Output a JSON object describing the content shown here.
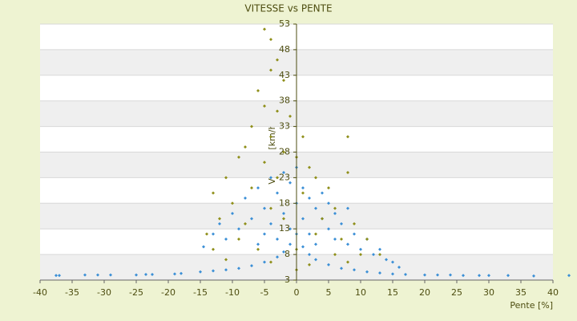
{
  "chart_data": {
    "type": "scatter",
    "title": "VITESSE vs PENTE",
    "x_label": "Pente [%]",
    "y_label": "Vitesse [km/h]",
    "xlim": [
      -40,
      40
    ],
    "xticks": [
      -40,
      -35,
      -30,
      -25,
      -20,
      -15,
      -10,
      -5,
      0,
      5,
      10,
      15,
      20,
      25,
      30,
      35,
      40
    ],
    "ylim": [
      3,
      53
    ],
    "yticks": [
      3,
      8,
      13,
      18,
      23,
      28,
      33,
      38,
      43,
      48,
      53
    ],
    "grid": true,
    "series": [
      {
        "color": "#3b8fd6",
        "x": [
          -37.5,
          -37,
          -33,
          -31,
          -29,
          -25,
          -23.5,
          -22.5,
          -19,
          -18,
          -15,
          -13,
          -11,
          -9,
          -7,
          -5,
          -3,
          -2,
          -1,
          1,
          2,
          3,
          5,
          7,
          9,
          11,
          13,
          15,
          17,
          20,
          22,
          24,
          26,
          28.5,
          30,
          33,
          37,
          42.5,
          -14.5,
          -13,
          -12,
          -11,
          -10,
          -9,
          -8,
          -7,
          -6,
          -6,
          -5,
          -5,
          -4,
          -4,
          -3,
          -3,
          -2,
          -2,
          -1,
          -1,
          0,
          0,
          0,
          1,
          1,
          2,
          2,
          3,
          3,
          4,
          4,
          5,
          5,
          6,
          6,
          7,
          8,
          8,
          9,
          10,
          11,
          12,
          13,
          14,
          15,
          16
        ],
        "y": [
          3.9,
          3.9,
          4,
          4,
          4,
          4,
          4.1,
          4.1,
          4.2,
          4.3,
          4.6,
          4.8,
          5,
          5.3,
          5.8,
          6.5,
          7.5,
          8.5,
          10,
          9.5,
          8,
          7,
          6,
          5.3,
          5,
          4.6,
          4.4,
          4.2,
          4.1,
          4,
          4,
          4,
          3.9,
          3.9,
          3.9,
          3.9,
          3.8,
          3.9,
          9.5,
          12,
          14,
          11,
          16,
          13,
          19,
          15,
          21,
          10,
          17,
          12,
          23,
          14,
          20,
          11,
          24,
          16,
          22,
          13,
          25,
          18,
          12,
          21,
          15,
          19,
          12,
          17,
          10,
          15,
          20,
          13,
          18,
          11,
          16,
          14,
          10,
          17,
          12,
          9,
          11,
          8,
          9,
          7,
          6.5,
          5.5
        ]
      },
      {
        "color": "#8f8f1a",
        "x": [
          -5,
          -4,
          -3,
          -4,
          -2,
          -6,
          -5,
          -3,
          -1,
          -7,
          -4,
          1,
          -8,
          -2,
          8,
          -9,
          -5,
          0,
          2,
          -11,
          -3,
          3,
          8,
          -13,
          -7,
          1,
          5,
          -10,
          -4,
          6,
          -12,
          -8,
          -2,
          4,
          9,
          -14,
          -9,
          3,
          7,
          11,
          -13,
          -6,
          0,
          6,
          10,
          13,
          -11,
          -4,
          2,
          8,
          0
        ],
        "y": [
          52,
          50,
          46,
          44,
          42,
          40,
          37,
          36,
          35,
          33,
          31,
          31,
          29,
          28,
          31,
          27,
          26,
          27,
          25,
          23,
          23,
          23,
          24,
          20,
          21,
          20,
          21,
          18,
          17,
          17,
          15,
          14,
          15,
          15,
          14,
          12,
          11,
          12,
          11,
          11,
          9,
          9,
          9,
          8,
          8,
          8,
          7,
          6.5,
          6,
          6.5,
          5
        ]
      }
    ]
  }
}
